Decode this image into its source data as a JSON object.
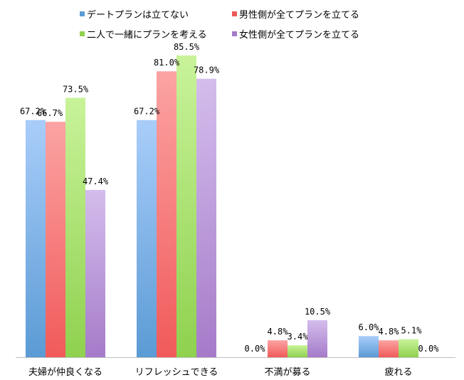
{
  "chart_data": {
    "type": "bar",
    "title": "",
    "xlabel": "",
    "ylabel": "",
    "ylim": [
      0,
      100
    ],
    "grid": false,
    "legend_position": "top",
    "categories": [
      "夫婦が仲良くなる",
      "リフレッシュできる",
      "不満が募る",
      "疲れる"
    ],
    "series": [
      {
        "name": "デートプランは立てない",
        "color": "#5b9bd5",
        "values": [
          67.2,
          67.2,
          0.0,
          6.0
        ],
        "labels": [
          "67.2%",
          "67.2%",
          "0.0%",
          "6.0%"
        ]
      },
      {
        "name": "男性側が全てプランを立てる",
        "color": "#f15a5a",
        "values": [
          66.7,
          81.0,
          4.8,
          4.8
        ],
        "labels": [
          "66.7%",
          "81.0%",
          "4.8%",
          "4.8%"
        ]
      },
      {
        "name": "二人で一緒にプランを考える",
        "color": "#8fd14f",
        "values": [
          73.5,
          85.5,
          3.4,
          5.1
        ],
        "labels": [
          "73.5%",
          "85.5%",
          "3.4%",
          "5.1%"
        ]
      },
      {
        "name": "女性側が全てプランを立てる",
        "color": "#a57bc9",
        "values": [
          47.4,
          78.9,
          10.5,
          0.0
        ],
        "labels": [
          "47.4%",
          "78.9%",
          "10.5%",
          "0.0%"
        ]
      }
    ]
  }
}
